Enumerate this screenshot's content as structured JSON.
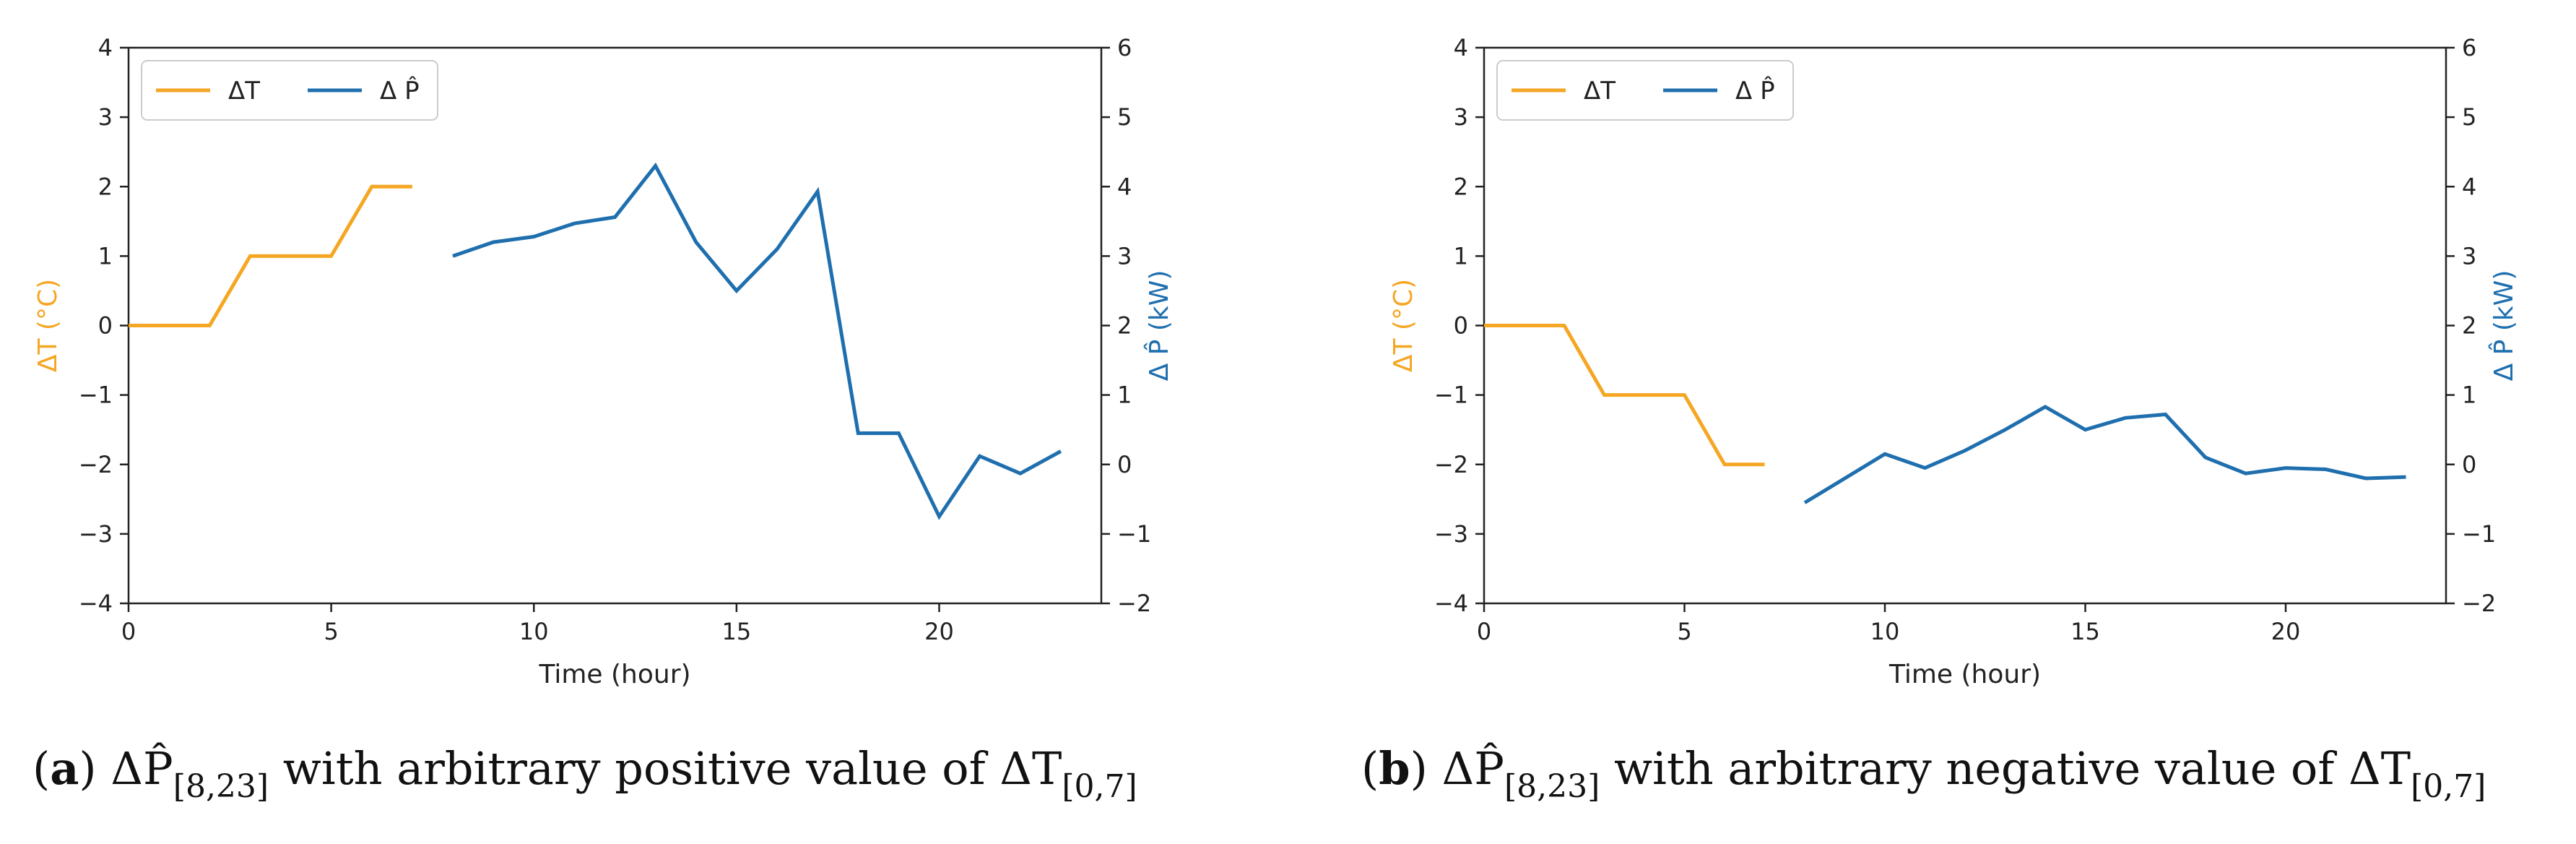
{
  "colors": {
    "temp": "#f5a623",
    "power": "#1f6fae",
    "axis": "#222222"
  },
  "chart_data": [
    {
      "type": "line",
      "panel": "a",
      "caption": {
        "tag": "a",
        "prefix": "ΔP̂",
        "sub1": "[8,23]",
        "middle": "with arbitrary positive value of ΔT",
        "sub2": "[0,7]"
      },
      "xlabel": "Time (hour)",
      "ylabel_left": "ΔT (°C)",
      "ylabel_right": "Δ P̂ (kW)",
      "xlim": [
        0,
        24
      ],
      "ylim_left": [
        -4,
        4
      ],
      "ylim_right": [
        -2,
        6
      ],
      "xticks": [
        0,
        5,
        10,
        15,
        20
      ],
      "yticks_left": [
        -4,
        -3,
        -2,
        -1,
        0,
        1,
        2,
        3,
        4
      ],
      "yticks_right": [
        -2,
        -1,
        0,
        1,
        2,
        3,
        4,
        5,
        6
      ],
      "legend": {
        "placement": "top-left",
        "entries": [
          "ΔT",
          "Δ P̂"
        ]
      },
      "series": [
        {
          "name": "ΔT",
          "axis": "left",
          "x": [
            0,
            1,
            2,
            3,
            4,
            5,
            6,
            7
          ],
          "values": [
            0,
            0,
            0,
            1,
            1,
            1,
            2,
            2
          ]
        },
        {
          "name": "Δ P̂",
          "axis": "right",
          "x": [
            8,
            9,
            10,
            11,
            12,
            13,
            14,
            15,
            16,
            17,
            18,
            19,
            20,
            21,
            22,
            23
          ],
          "values": [
            3.0,
            3.2,
            3.28,
            3.47,
            3.56,
            4.3,
            3.2,
            2.5,
            3.1,
            3.93,
            0.45,
            0.45,
            -0.75,
            0.12,
            -0.13,
            0.19
          ]
        }
      ]
    },
    {
      "type": "line",
      "panel": "b",
      "caption": {
        "tag": "b",
        "prefix": "ΔP̂",
        "sub1": "[8,23]",
        "middle": "with arbitrary negative value of ΔT",
        "sub2": "[0,7]"
      },
      "xlabel": "Time (hour)",
      "ylabel_left": "ΔT (°C)",
      "ylabel_right": "Δ P̂ (kW)",
      "xlim": [
        0,
        24
      ],
      "ylim_left": [
        -4,
        4
      ],
      "ylim_right": [
        -2,
        6
      ],
      "xticks": [
        0,
        5,
        10,
        15,
        20
      ],
      "yticks_left": [
        -4,
        -3,
        -2,
        -1,
        0,
        1,
        2,
        3,
        4
      ],
      "yticks_right": [
        -2,
        -1,
        0,
        1,
        2,
        3,
        4,
        5,
        6
      ],
      "legend": {
        "placement": "top-left",
        "entries": [
          "ΔT",
          "Δ P̂"
        ]
      },
      "series": [
        {
          "name": "ΔT",
          "axis": "left",
          "x": [
            0,
            1,
            2,
            3,
            4,
            5,
            6,
            7
          ],
          "values": [
            0,
            0,
            0,
            -1,
            -1,
            -1,
            -2,
            -2
          ]
        },
        {
          "name": "Δ P̂",
          "axis": "right",
          "x": [
            8,
            9,
            10,
            11,
            12,
            13,
            14,
            15,
            16,
            17,
            18,
            19,
            20,
            21,
            22,
            23
          ],
          "values": [
            -0.55,
            -0.2,
            0.15,
            -0.05,
            0.2,
            0.5,
            0.83,
            0.5,
            0.67,
            0.72,
            0.1,
            -0.13,
            -0.05,
            -0.07,
            -0.2,
            -0.18
          ]
        }
      ]
    }
  ]
}
